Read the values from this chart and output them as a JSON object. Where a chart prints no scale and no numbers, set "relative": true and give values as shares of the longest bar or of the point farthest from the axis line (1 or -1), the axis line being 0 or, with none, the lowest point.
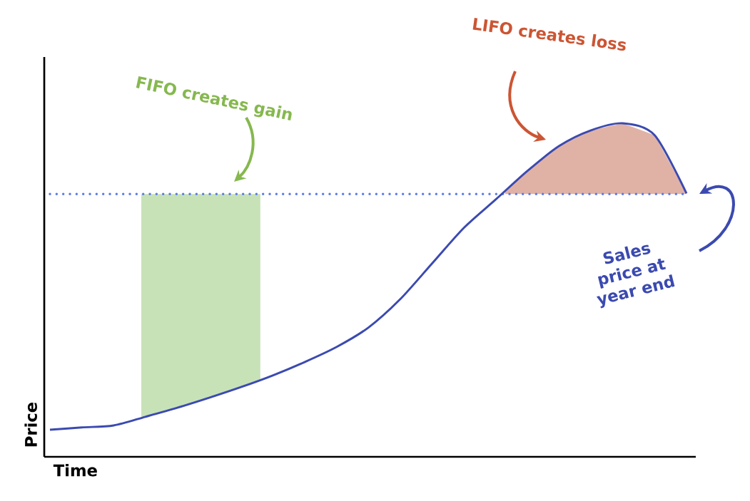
{
  "chart_data": {
    "type": "line",
    "relative": true,
    "categories": [
      null,
      null,
      null,
      null,
      null,
      null,
      null,
      null,
      null,
      null,
      null,
      null,
      null,
      null,
      null,
      null,
      null,
      null,
      null,
      null,
      null
    ],
    "series": [
      {
        "color": "#3b4ab0",
        "values": [
          0.081,
          0.088,
          0.094,
          0.12,
          0.147,
          0.177,
          0.209,
          0.244,
          0.284,
          0.329,
          0.387,
          0.472,
          0.579,
          0.686,
          0.771,
          0.857,
          0.932,
          0.979,
          1.0,
          0.964,
          0.79
        ]
      }
    ],
    "ref_lines": [
      {
        "axis": "y",
        "value": 0.788,
        "color": "#5b7be8",
        "line_style": "dotted"
      }
    ],
    "xlabel": "Time",
    "ylabel": "Price",
    "annotations": [
      "FIFO creates gain",
      "LIFO creates loss",
      "Sales price at year end"
    ],
    "grid": false
  }
}
